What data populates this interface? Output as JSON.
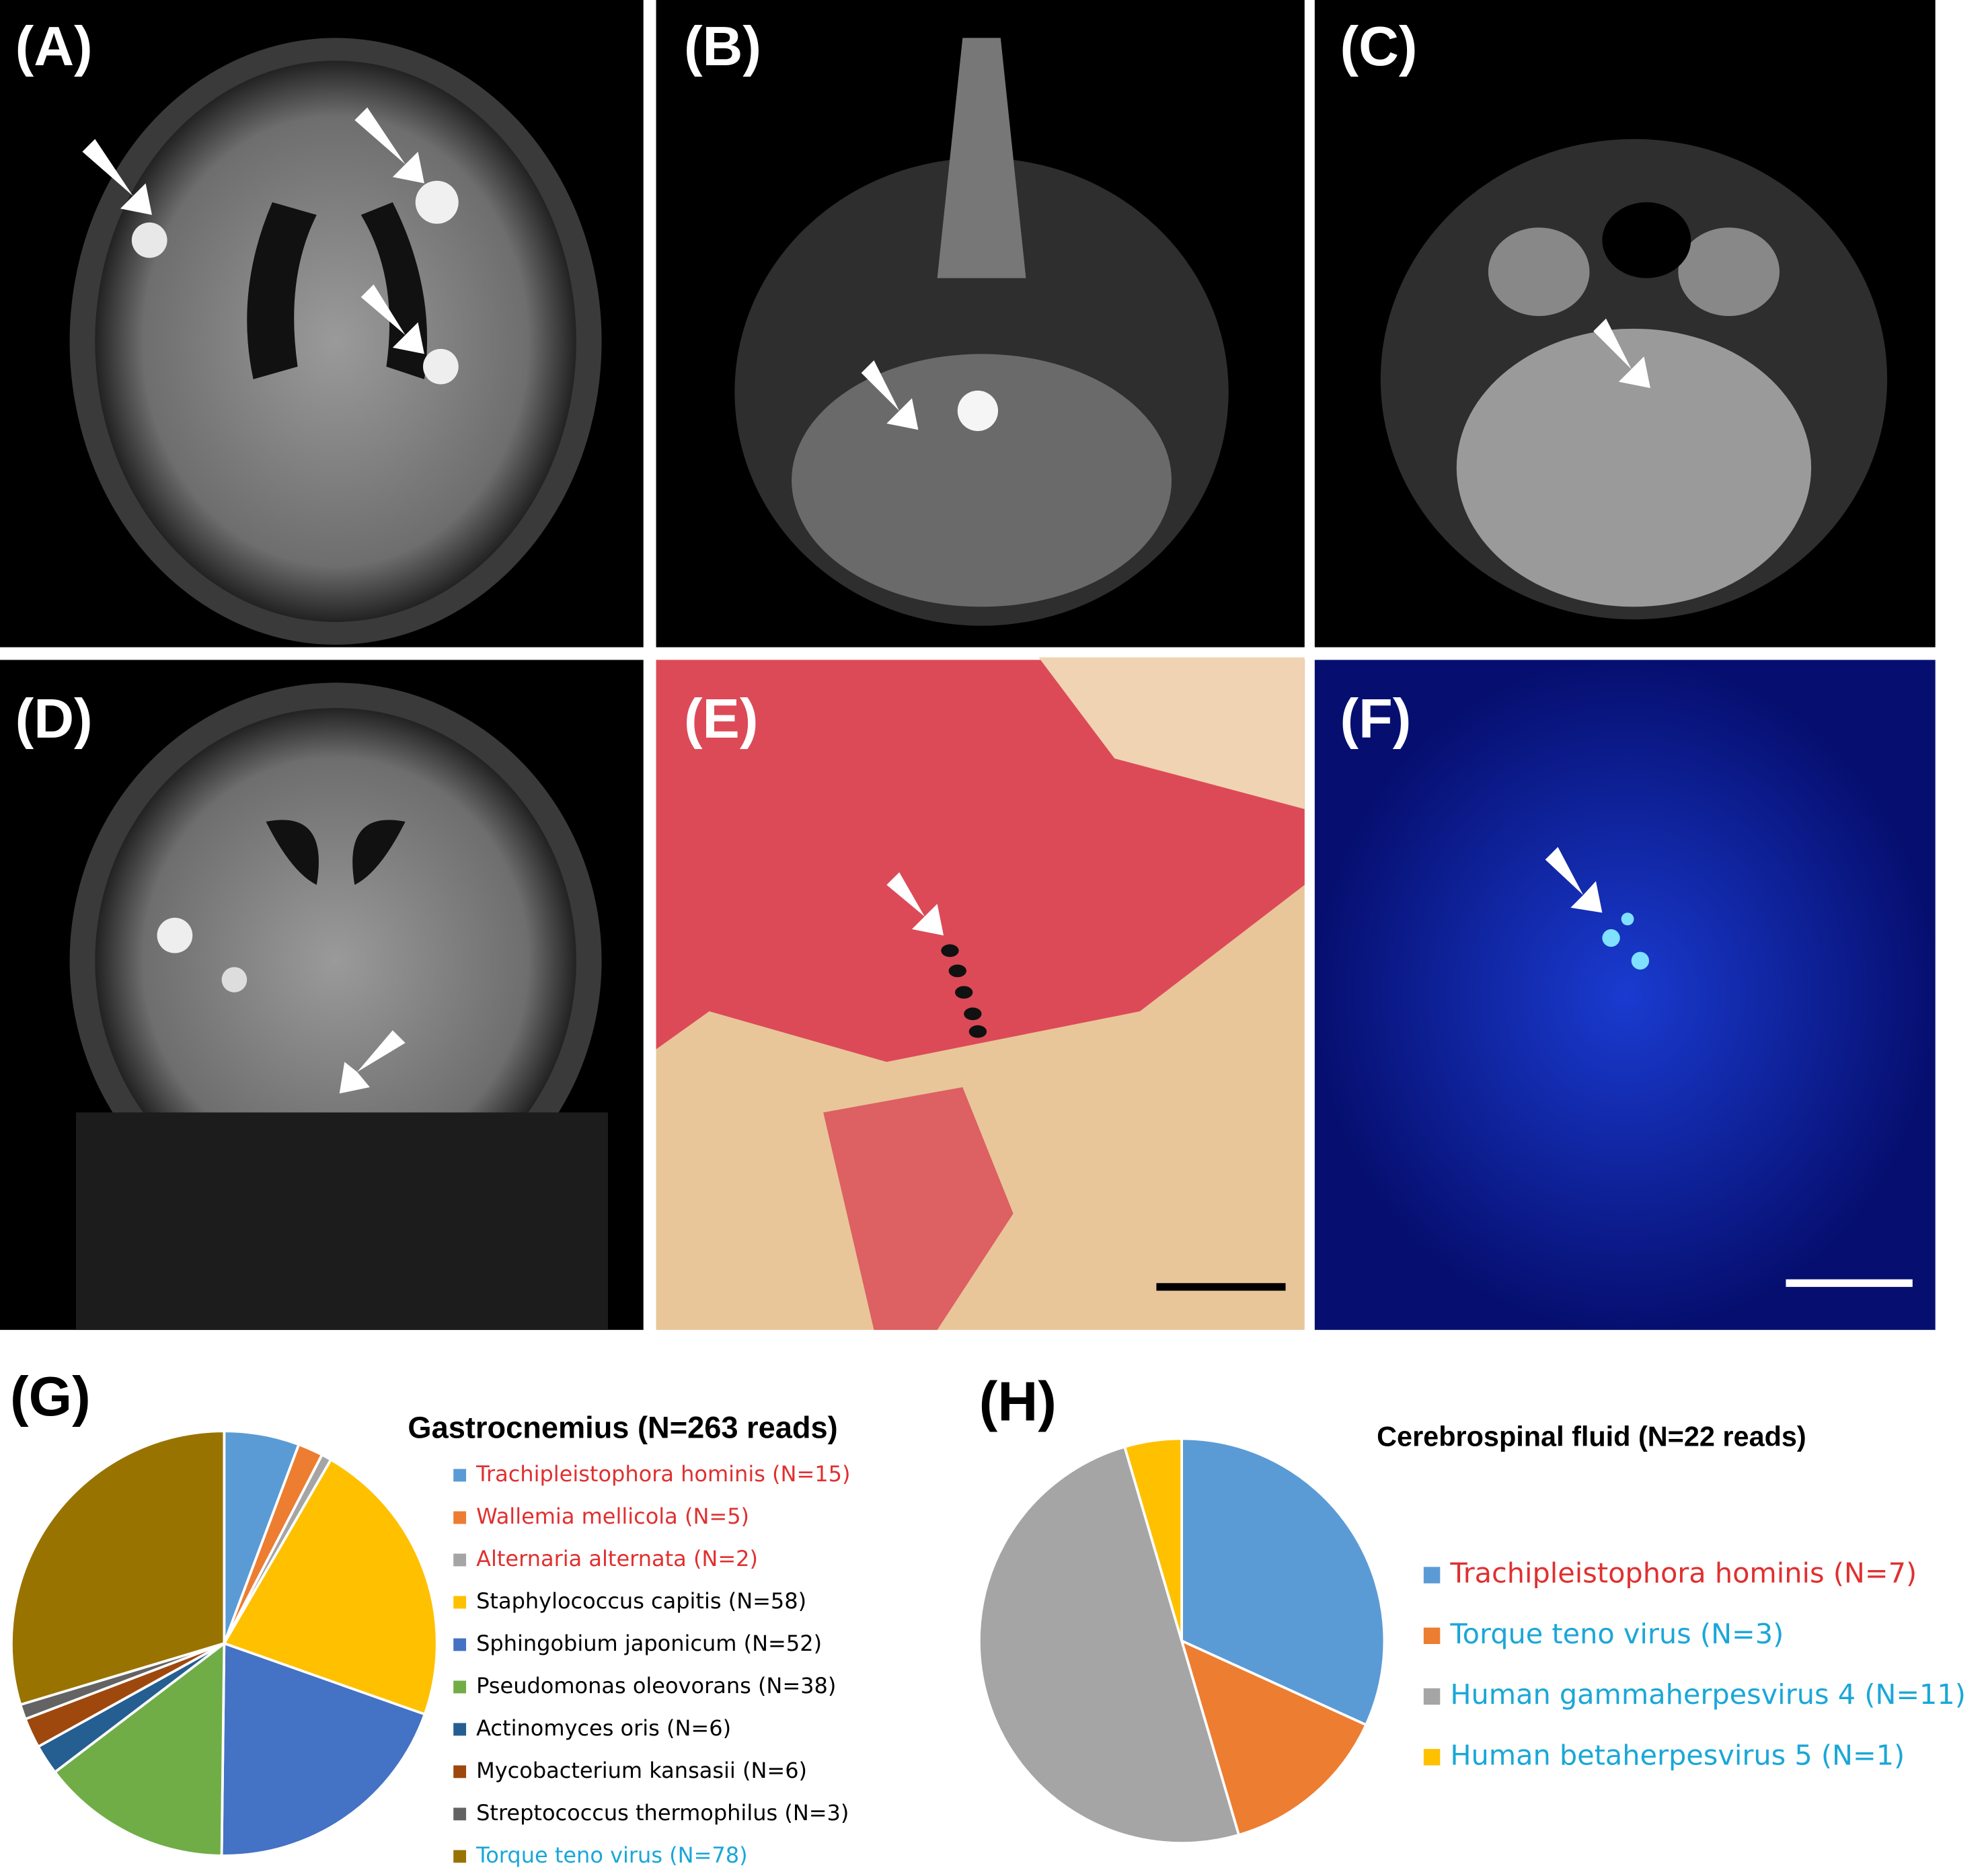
{
  "panel_labels": [
    "(A)",
    "(B)",
    "(C)",
    "(D)",
    "(E)",
    "(F)",
    "(G)",
    "(H)"
  ],
  "chart_data": [
    {
      "type": "pie",
      "title": "Gastrocnemius (N=263 reads)",
      "categories": [
        "Trachipleistophora hominis (N=15)",
        "Wallemia mellicola (N=5)",
        "Alternaria alternata (N=2)",
        "Staphylococcus capitis (N=58)",
        "Sphingobium japonicum (N=52)",
        "Pseudomonas oleovorans (N=38)",
        "Actinomyces oris (N=6)",
        "Mycobacterium kansasii (N=6)",
        "Streptococcus thermophilus (N=3)",
        "Torque teno virus (N=78)"
      ],
      "values": [
        15,
        5,
        2,
        58,
        52,
        38,
        6,
        6,
        3,
        78
      ],
      "colors": [
        "#5b9bd5",
        "#ed7d31",
        "#a5a5a5",
        "#ffc000",
        "#4472c4",
        "#70ad47",
        "#255e91",
        "#9e480e",
        "#636363",
        "#997300"
      ],
      "label_colors": [
        "#e03030",
        "#e03030",
        "#e03030",
        "#000000",
        "#000000",
        "#000000",
        "#000000",
        "#000000",
        "#000000",
        "#1aa7d8"
      ]
    },
    {
      "type": "pie",
      "title": "Cerebrospinal fluid (N=22 reads)",
      "categories": [
        "Trachipleistophora hominis (N=7)",
        "Torque teno virus (N=3)",
        "Human gammaherpesvirus 4 (N=11)",
        "Human betaherpesvirus 5 (N=1)"
      ],
      "values": [
        7,
        3,
        11,
        1
      ],
      "colors": [
        "#5b9bd5",
        "#ed7d31",
        "#a5a5a5",
        "#ffc000"
      ],
      "label_colors": [
        "#e03030",
        "#1aa7d8",
        "#1aa7d8",
        "#1aa7d8"
      ]
    }
  ]
}
